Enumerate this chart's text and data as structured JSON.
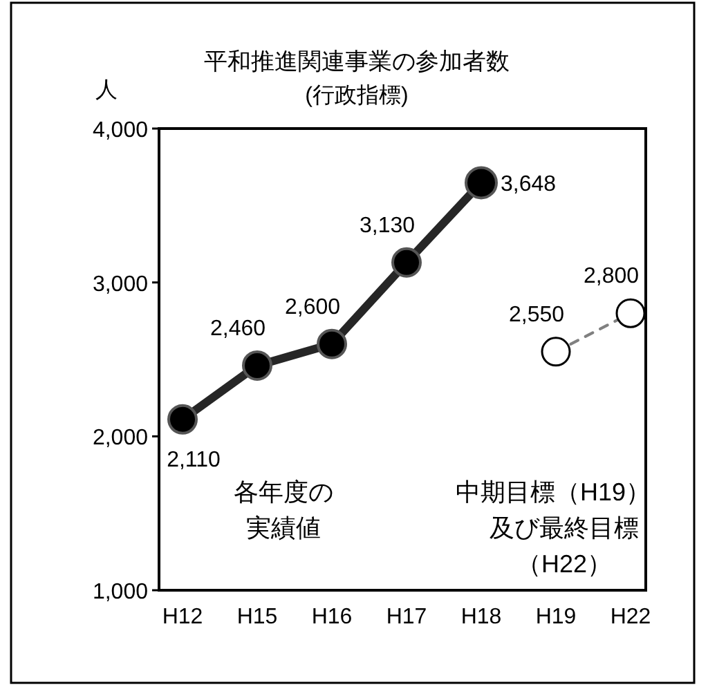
{
  "chart_data": {
    "type": "line",
    "title": "平和推進関連事業の参加者数",
    "subtitle": "(行政指標)",
    "ylabel": "人",
    "categories": [
      "H12",
      "H15",
      "H16",
      "H17",
      "H18",
      "H19",
      "H22"
    ],
    "series": [
      {
        "color": "#262626",
        "values": [
          2110,
          2460,
          2600,
          3130,
          3648,
          null,
          null
        ],
        "value_labels": [
          "2,110",
          "2,460",
          "2,600",
          "3,130",
          "3,648",
          null,
          null
        ],
        "line_style": "solid"
      },
      {
        "color": "#808080",
        "values": [
          null,
          null,
          null,
          null,
          null,
          2550,
          2800
        ],
        "value_labels": [
          null,
          null,
          null,
          null,
          null,
          "2,550",
          "2,800"
        ],
        "line_style": "dashed"
      }
    ],
    "ylim": [
      1000,
      4000
    ],
    "yticks": [
      {
        "value": 1000,
        "label": "1,000"
      },
      {
        "value": 2000,
        "label": "2,000"
      },
      {
        "value": 3000,
        "label": "3,000"
      },
      {
        "value": 4000,
        "label": "4,000"
      }
    ],
    "annotations": [
      "各年度の",
      "実績値",
      "中期目標（H19）",
      "及び最終目標",
      "（H22）"
    ],
    "marker": "circle",
    "grid": false
  }
}
